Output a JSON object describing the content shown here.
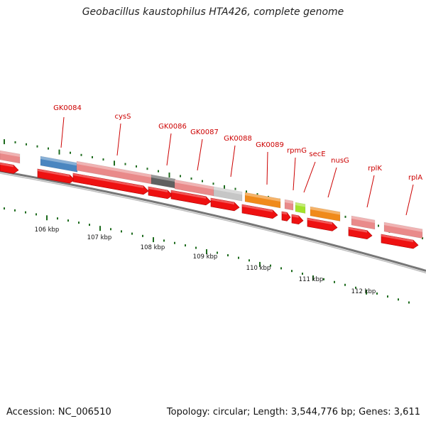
{
  "title": "Geobacillus kaustophilus HTA426, complete genome",
  "accession": "Accession: NC_006510",
  "stats": "Topology: circular; Length: 3,544,776 bp; Genes: 3,611",
  "colors": {
    "cds_red": "#ee1111",
    "pink": "#e98a8a",
    "blue": "#4a86c0",
    "darkgray": "#606060",
    "lightgray": "#c6c6c6",
    "orange": "#f08a1a",
    "lime": "#a3e22b",
    "ruler": "#1d6b1d",
    "label": "#cc0000",
    "backbone": "#777777"
  },
  "ruler_labels": [
    "106 kbp",
    "107 kbp",
    "108 kbp",
    "109 kbp",
    "110 kbp",
    "111 kbp",
    "112 kbp"
  ],
  "genes": [
    {
      "label": "GK0084",
      "color": "blue"
    },
    {
      "label": "cysS",
      "color": "pink"
    },
    {
      "label": "GK0086",
      "color": "darkgray"
    },
    {
      "label": "GK0087",
      "color": "pink"
    },
    {
      "label": "GK0088",
      "color": "lightgray"
    },
    {
      "label": "GK0089",
      "color": "orange"
    },
    {
      "label": "rpmG",
      "color": "pink"
    },
    {
      "label": "secE",
      "color": "lime"
    },
    {
      "label": "nusG",
      "color": "orange"
    },
    {
      "label": "rplK",
      "color": "pink"
    },
    {
      "label": "rplA",
      "color": "pink"
    }
  ]
}
